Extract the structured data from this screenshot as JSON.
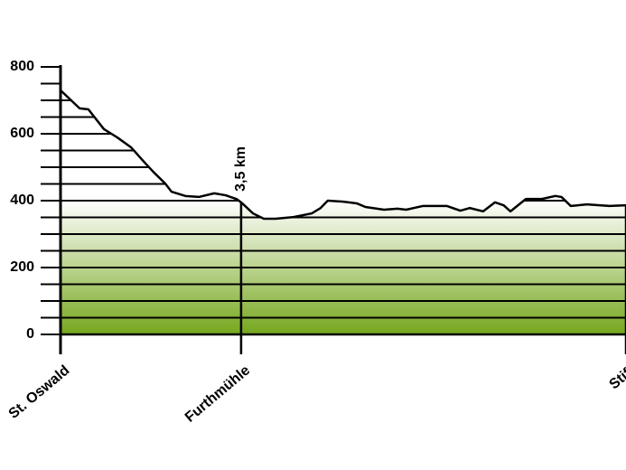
{
  "chart_data": {
    "type": "area",
    "annotation": "3,5 km",
    "annotation_x": 3.5,
    "x": [
      0,
      0.37,
      0.54,
      0.84,
      1.1,
      1.37,
      1.63,
      1.8,
      2.03,
      2.15,
      2.42,
      2.68,
      2.98,
      3.2,
      3.41,
      3.5,
      3.73,
      3.94,
      4.17,
      4.52,
      4.87,
      5.04,
      5.18,
      5.48,
      5.74,
      5.91,
      6.27,
      6.53,
      6.7,
      7.02,
      7.49,
      7.75,
      7.93,
      8.19,
      8.42,
      8.59,
      8.72,
      9.02,
      9.33,
      9.59,
      9.71,
      9.89,
      10.2,
      10.64,
      10.96
    ],
    "values": [
      730,
      676,
      673,
      614,
      589,
      559,
      514,
      486,
      451,
      427,
      414,
      411,
      422,
      416,
      405,
      395,
      362,
      346,
      346,
      351,
      362,
      378,
      400,
      397,
      392,
      381,
      373,
      376,
      373,
      384,
      384,
      370,
      378,
      368,
      395,
      386,
      368,
      405,
      405,
      414,
      411,
      384,
      389,
      384,
      386
    ],
    "xlim": [
      0,
      10.96
    ],
    "xticks": [
      {
        "value": 0,
        "label": "St. Oswald"
      },
      {
        "value": 3.5,
        "label": "Furthmühle"
      },
      {
        "value": 10.96,
        "label": "Stift"
      }
    ],
    "ylim": [
      0,
      800
    ],
    "yticks": [
      0,
      200,
      400,
      600,
      800
    ],
    "yminorticks": [
      50,
      100,
      150,
      250,
      300,
      350,
      450,
      500,
      550,
      650,
      700,
      750
    ],
    "grid": true,
    "fill_bottom_color": "#76a71e",
    "fill_top_color": "#ffffff",
    "line_color": "#000000"
  }
}
